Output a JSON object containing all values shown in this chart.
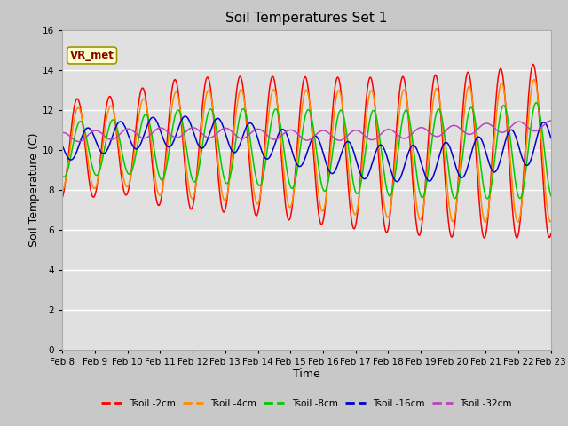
{
  "title": "Soil Temperatures Set 1",
  "xlabel": "Time",
  "ylabel": "Soil Temperature (C)",
  "ylim": [
    0,
    16
  ],
  "yticks": [
    0,
    2,
    4,
    6,
    8,
    10,
    12,
    14,
    16
  ],
  "date_labels": [
    "Feb 8",
    "Feb 9",
    "Feb 10",
    "Feb 11",
    "Feb 12",
    "Feb 13",
    "Feb 14",
    "Feb 15",
    "Feb 16",
    "Feb 17",
    "Feb 18",
    "Feb 19",
    "Feb 20",
    "Feb 21",
    "Feb 22",
    "Feb 23"
  ],
  "series_colors": {
    "Tsoil -2cm": "#ff0000",
    "Tsoil -4cm": "#ff8c00",
    "Tsoil -8cm": "#00cc00",
    "Tsoil -16cm": "#0000cc",
    "Tsoil -32cm": "#bb44bb"
  },
  "annotation_text": "VR_met",
  "annotation_facecolor": "#ffffcc",
  "annotation_edgecolor": "#999900",
  "annotation_textcolor": "#880000",
  "fig_bg_color": "#c8c8c8",
  "plot_bg_color": "#e0e0e0",
  "title_fontsize": 11,
  "axis_label_fontsize": 9,
  "tick_fontsize": 7.5
}
